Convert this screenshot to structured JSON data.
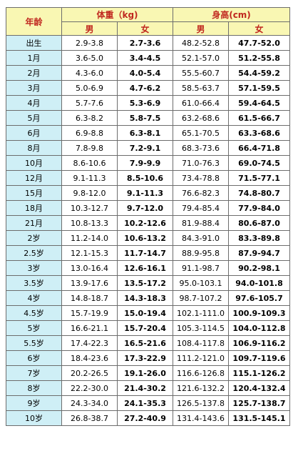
{
  "header": {
    "age": "年龄",
    "weight": "体重（kg)",
    "height": "身高(cm)",
    "male": "男",
    "female": "女"
  },
  "rows": [
    {
      "age": "出生",
      "wm": "2.9-3.8",
      "wf": "2.7-3.6",
      "hm": "48.2-52.8",
      "hf": "47.7-52.0"
    },
    {
      "age": "1月",
      "wm": "3.6-5.0",
      "wf": "3.4-4.5",
      "hm": "52.1-57.0",
      "hf": "51.2-55.8"
    },
    {
      "age": "2月",
      "wm": "4.3-6.0",
      "wf": "4.0-5.4",
      "hm": "55.5-60.7",
      "hf": "54.4-59.2"
    },
    {
      "age": "3月",
      "wm": "5.0-6.9",
      "wf": "4.7-6.2",
      "hm": "58.5-63.7",
      "hf": "57.1-59.5"
    },
    {
      "age": "4月",
      "wm": "5.7-7.6",
      "wf": "5.3-6.9",
      "hm": "61.0-66.4",
      "hf": "59.4-64.5"
    },
    {
      "age": "5月",
      "wm": "6.3-8.2",
      "wf": "5.8-7.5",
      "hm": "63.2-68.6",
      "hf": "61.5-66.7"
    },
    {
      "age": "6月",
      "wm": "6.9-8.8",
      "wf": "6.3-8.1",
      "hm": "65.1-70.5",
      "hf": "63.3-68.6"
    },
    {
      "age": "8月",
      "wm": "7.8-9.8",
      "wf": "7.2-9.1",
      "hm": "68.3-73.6",
      "hf": "66.4-71.8"
    },
    {
      "age": "10月",
      "wm": "8.6-10.6",
      "wf": "7.9-9.9",
      "hm": "71.0-76.3",
      "hf": "69.0-74.5"
    },
    {
      "age": "12月",
      "wm": "9.1-11.3",
      "wf": "8.5-10.6",
      "hm": "73.4-78.8",
      "hf": "71.5-77.1"
    },
    {
      "age": "15月",
      "wm": "9.8-12.0",
      "wf": "9.1-11.3",
      "hm": "76.6-82.3",
      "hf": "74.8-80.7"
    },
    {
      "age": "18月",
      "wm": "10.3-12.7",
      "wf": "9.7-12.0",
      "hm": "79.4-85.4",
      "hf": "77.9-84.0"
    },
    {
      "age": "21月",
      "wm": "10.8-13.3",
      "wf": "10.2-12.6",
      "hm": "81.9-88.4",
      "hf": "80.6-87.0"
    },
    {
      "age": "2岁",
      "wm": "11.2-14.0",
      "wf": "10.6-13.2",
      "hm": "84.3-91.0",
      "hf": "83.3-89.8"
    },
    {
      "age": "2.5岁",
      "wm": "12.1-15.3",
      "wf": "11.7-14.7",
      "hm": "88.9-95.8",
      "hf": "87.9-94.7"
    },
    {
      "age": "3岁",
      "wm": "13.0-16.4",
      "wf": "12.6-16.1",
      "hm": "91.1-98.7",
      "hf": "90.2-98.1"
    },
    {
      "age": "3.5岁",
      "wm": "13.9-17.6",
      "wf": "13.5-17.2",
      "hm": "95.0-103.1",
      "hf": "94.0-101.8"
    },
    {
      "age": "4岁",
      "wm": "14.8-18.7",
      "wf": "14.3-18.3",
      "hm": "98.7-107.2",
      "hf": "97.6-105.7"
    },
    {
      "age": "4.5岁",
      "wm": "15.7-19.9",
      "wf": "15.0-19.4",
      "hm": "102.1-111.0",
      "hf": "100.9-109.3"
    },
    {
      "age": "5岁",
      "wm": "16.6-21.1",
      "wf": "15.7-20.4",
      "hm": "105.3-114.5",
      "hf": "104.0-112.8"
    },
    {
      "age": "5.5岁",
      "wm": "17.4-22.3",
      "wf": "16.5-21.6",
      "hm": "108.4-117.8",
      "hf": "106.9-116.2"
    },
    {
      "age": "6岁",
      "wm": "18.4-23.6",
      "wf": "17.3-22.9",
      "hm": "111.2-121.0",
      "hf": "109.7-119.6"
    },
    {
      "age": "7岁",
      "wm": "20.2-26.5",
      "wf": "19.1-26.0",
      "hm": "116.6-126.8",
      "hf": "115.1-126.2"
    },
    {
      "age": "8岁",
      "wm": "22.2-30.0",
      "wf": "21.4-30.2",
      "hm": "121.6-132.2",
      "hf": "120.4-132.4"
    },
    {
      "age": "9岁",
      "wm": "24.3-34.0",
      "wf": "24.1-35.3",
      "hm": "126.5-137.8",
      "hf": "125.7-138.7"
    },
    {
      "age": "10岁",
      "wm": "26.8-38.7",
      "wf": "27.2-40.9",
      "hm": "131.4-143.6",
      "hf": "131.5-145.1"
    }
  ]
}
